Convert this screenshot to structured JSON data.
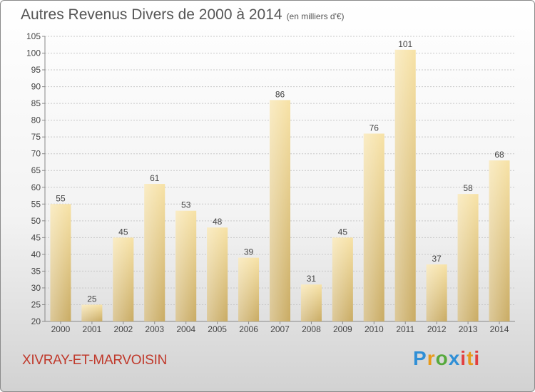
{
  "title": "Autres Revenus Divers de 2000 à 2014",
  "title_unit": "(en milliers d'€)",
  "commune": "XIVRAY-ET-MARVOISIN",
  "logo_text": "Proxiti",
  "colors": {
    "bar_light": "#f7e2a6",
    "bar_dark": "#c9ab63",
    "commune": "#c0392b",
    "text": "#555555"
  },
  "chart_data": {
    "type": "bar",
    "categories": [
      "2000",
      "2001",
      "2002",
      "2003",
      "2004",
      "2005",
      "2006",
      "2007",
      "2008",
      "2009",
      "2010",
      "2011",
      "2012",
      "2013",
      "2014"
    ],
    "values": [
      55,
      25,
      45,
      61,
      53,
      48,
      39,
      86,
      31,
      45,
      76,
      101,
      37,
      58,
      68
    ],
    "ylim": [
      20,
      105
    ],
    "yticks": [
      20,
      25,
      30,
      35,
      40,
      45,
      50,
      55,
      60,
      65,
      70,
      75,
      80,
      85,
      90,
      95,
      100,
      105
    ],
    "grid": true,
    "legend": "none"
  }
}
